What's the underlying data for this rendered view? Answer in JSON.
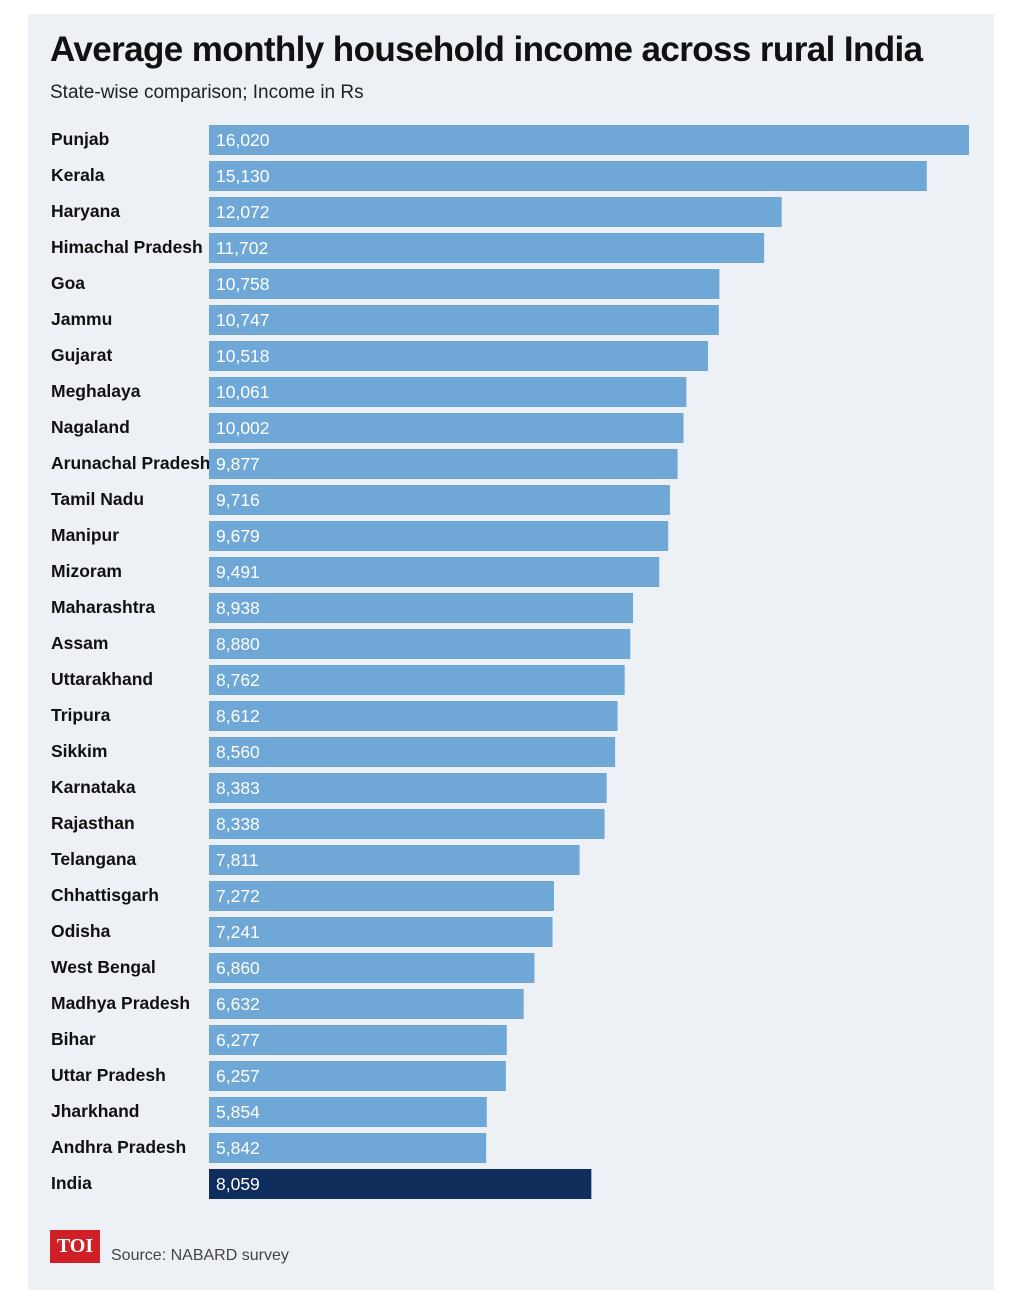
{
  "header": {
    "title": "Average monthly household income across rural India",
    "subtitle": "State-wise comparison; Income in Rs"
  },
  "footer": {
    "logo_text": "TOI",
    "source": "Source: NABARD survey"
  },
  "colors": {
    "bar": "#6fa8d6",
    "highlight_bar": "#0f2d5c",
    "background": "#edf0f4",
    "logo": "#cf2027"
  },
  "chart_data": {
    "type": "bar",
    "orientation": "horizontal",
    "title": "Average monthly household income across rural India",
    "subtitle": "State-wise comparison; Income in Rs",
    "xlabel": "",
    "ylabel": "",
    "xlim": [
      0,
      16020
    ],
    "grid": false,
    "highlight": "India",
    "categories": [
      "Punjab",
      "Kerala",
      "Haryana",
      "Himachal Pradesh",
      "Goa",
      "Jammu",
      "Gujarat",
      "Meghalaya",
      "Nagaland",
      "Arunachal Pradesh",
      "Tamil Nadu",
      "Manipur",
      "Mizoram",
      "Maharashtra",
      "Assam",
      "Uttarakhand",
      "Tripura",
      "Sikkim",
      "Karnataka",
      "Rajasthan",
      "Telangana",
      "Chhattisgarh",
      "Odisha",
      "West Bengal",
      "Madhya Pradesh",
      "Bihar",
      "Uttar Pradesh",
      "Jharkhand",
      "Andhra Pradesh",
      "India"
    ],
    "values": [
      16020,
      15130,
      12072,
      11702,
      10758,
      10747,
      10518,
      10061,
      10002,
      9877,
      9716,
      9679,
      9491,
      8938,
      8880,
      8762,
      8612,
      8560,
      8383,
      8338,
      7811,
      7272,
      7241,
      6860,
      6632,
      6277,
      6257,
      5854,
      5842,
      8059
    ],
    "value_labels": [
      "16,020",
      "15,130",
      "12,072",
      "11,702",
      "10,758",
      "10,747",
      "10,518",
      "10,061",
      "10,002",
      "9,877",
      "9,716",
      "9,679",
      "9,491",
      "8,938",
      "8,880",
      "8,762",
      "8,612",
      "8,560",
      "8,383",
      "8,338",
      "7,811",
      "7,272",
      "7,241",
      "6,860",
      "6,632",
      "6,277",
      "6,257",
      "5,854",
      "5,842",
      "8,059"
    ]
  }
}
